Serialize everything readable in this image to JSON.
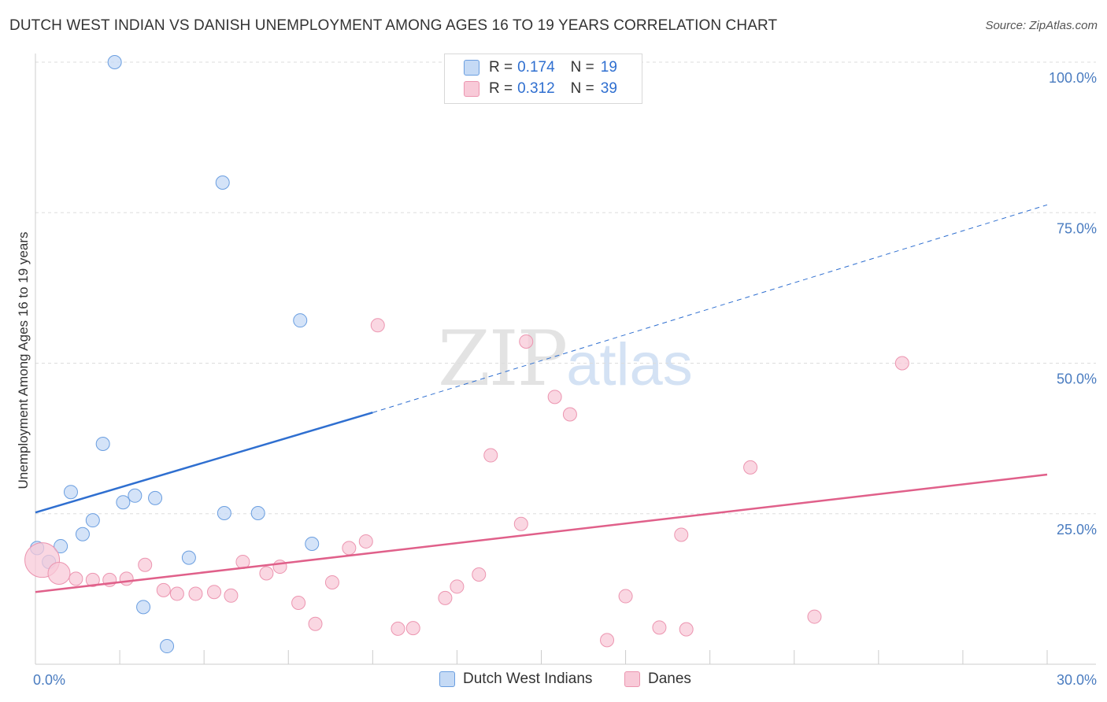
{
  "chart_data": {
    "type": "scatter",
    "title": "DUTCH WEST INDIAN VS DANISH UNEMPLOYMENT AMONG AGES 16 TO 19 YEARS CORRELATION CHART",
    "source": "Source: ZipAtlas.com",
    "xlabel": "",
    "ylabel": "Unemployment Among Ages 16 to 19 years",
    "xlim": [
      0,
      30
    ],
    "ylim": [
      0,
      100
    ],
    "x_tick_labels": [
      "0.0%",
      "30.0%"
    ],
    "y_ticks": [
      {
        "value": 25,
        "label": "25.0%"
      },
      {
        "value": 50,
        "label": "50.0%"
      },
      {
        "value": 75,
        "label": "75.0%"
      },
      {
        "value": 100,
        "label": "100.0%"
      }
    ],
    "grid": true,
    "watermark": {
      "zip": "ZIP",
      "atlas": "atlas"
    },
    "series": [
      {
        "name": "Dutch West Indians",
        "color": "#6a9ee0",
        "fill": "#c5daf5",
        "line_color": "#2f6fd0",
        "R": "0.174",
        "N": "19",
        "trend": {
          "x0": 0,
          "y0": 25.2,
          "x1": 10,
          "y1": 41.8,
          "x_ext": 30,
          "y_ext": 76.3
        },
        "points": [
          {
            "x": 0.05,
            "y": 19.3
          },
          {
            "x": 0.4,
            "y": 17.0
          },
          {
            "x": 0.75,
            "y": 19.6
          },
          {
            "x": 1.05,
            "y": 28.6
          },
          {
            "x": 1.4,
            "y": 21.6
          },
          {
            "x": 1.7,
            "y": 23.9
          },
          {
            "x": 2.0,
            "y": 36.6
          },
          {
            "x": 2.35,
            "y": 100.0
          },
          {
            "x": 2.6,
            "y": 26.9
          },
          {
            "x": 2.95,
            "y": 28.0
          },
          {
            "x": 3.2,
            "y": 9.5
          },
          {
            "x": 3.55,
            "y": 27.6
          },
          {
            "x": 3.9,
            "y": 3.0
          },
          {
            "x": 4.55,
            "y": 17.7
          },
          {
            "x": 5.55,
            "y": 80.0
          },
          {
            "x": 5.6,
            "y": 25.1
          },
          {
            "x": 6.6,
            "y": 25.1
          },
          {
            "x": 7.85,
            "y": 57.1
          },
          {
            "x": 8.2,
            "y": 20.0
          }
        ]
      },
      {
        "name": "Danes",
        "color": "#ec95b0",
        "fill": "#f8cad8",
        "line_color": "#e0608a",
        "R": "0.312",
        "N": "39",
        "trend": {
          "x0": 0,
          "y0": 12.0,
          "x1": 30,
          "y1": 31.5
        },
        "points": [
          {
            "x": 0.2,
            "y": 17.3,
            "r": 22
          },
          {
            "x": 0.7,
            "y": 15.1,
            "r": 14
          },
          {
            "x": 1.2,
            "y": 14.2
          },
          {
            "x": 1.7,
            "y": 14.0
          },
          {
            "x": 2.2,
            "y": 14.0
          },
          {
            "x": 2.7,
            "y": 14.2
          },
          {
            "x": 3.25,
            "y": 16.5
          },
          {
            "x": 3.8,
            "y": 12.3
          },
          {
            "x": 4.2,
            "y": 11.7
          },
          {
            "x": 4.75,
            "y": 11.7
          },
          {
            "x": 5.3,
            "y": 12.0
          },
          {
            "x": 5.8,
            "y": 11.4
          },
          {
            "x": 6.15,
            "y": 17.0
          },
          {
            "x": 6.85,
            "y": 15.1
          },
          {
            "x": 7.25,
            "y": 16.2
          },
          {
            "x": 7.8,
            "y": 10.2
          },
          {
            "x": 8.3,
            "y": 6.7
          },
          {
            "x": 8.8,
            "y": 13.6
          },
          {
            "x": 9.3,
            "y": 19.3
          },
          {
            "x": 9.8,
            "y": 20.4
          },
          {
            "x": 10.15,
            "y": 56.3
          },
          {
            "x": 10.75,
            "y": 5.9
          },
          {
            "x": 11.2,
            "y": 6.0
          },
          {
            "x": 12.15,
            "y": 11.0
          },
          {
            "x": 12.5,
            "y": 12.9
          },
          {
            "x": 13.15,
            "y": 14.9
          },
          {
            "x": 13.5,
            "y": 34.7
          },
          {
            "x": 14.4,
            "y": 23.3
          },
          {
            "x": 14.55,
            "y": 53.6
          },
          {
            "x": 15.4,
            "y": 44.4
          },
          {
            "x": 15.85,
            "y": 41.5
          },
          {
            "x": 16.95,
            "y": 4.0
          },
          {
            "x": 17.5,
            "y": 11.3
          },
          {
            "x": 18.5,
            "y": 6.1
          },
          {
            "x": 19.15,
            "y": 21.5
          },
          {
            "x": 19.3,
            "y": 5.8
          },
          {
            "x": 21.2,
            "y": 32.7
          },
          {
            "x": 23.1,
            "y": 7.9
          },
          {
            "x": 25.7,
            "y": 50.0
          }
        ]
      }
    ]
  },
  "stats_legend": {
    "r_label": "R =",
    "n_label": "N ="
  }
}
